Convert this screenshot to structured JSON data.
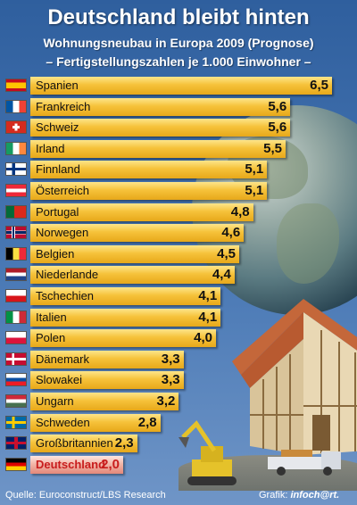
{
  "title": "Deutschland bleibt hinten",
  "subtitle_line1": "Wohnungsneubau in Europa 2009 (Prognose)",
  "subtitle_line2": "– Fertigstellungszahlen je 1.000 Einwohner –",
  "source": "Quelle: Euroconstruct/LBS Research",
  "credit_label": "Grafik:",
  "credit_brand": "infoch@rt.",
  "colors": {
    "bar": "#f6c23a",
    "bar_highlight": "#f2b6a8",
    "highlight_text": "#c81d1d",
    "background": "#3a67a8"
  },
  "chart_data": {
    "type": "bar",
    "orientation": "horizontal",
    "categories": [
      "Spanien",
      "Frankreich",
      "Schweiz",
      "Irland",
      "Finnland",
      "Österreich",
      "Portugal",
      "Norwegen",
      "Belgien",
      "Niederlande",
      "Tschechien",
      "Italien",
      "Polen",
      "Dänemark",
      "Slowakei",
      "Ungarn",
      "Schweden",
      "Großbritannien",
      "Deutschland"
    ],
    "values": [
      6.5,
      5.6,
      5.6,
      5.5,
      5.1,
      5.1,
      4.8,
      4.6,
      4.5,
      4.4,
      4.1,
      4.1,
      4.0,
      3.3,
      3.3,
      3.2,
      2.8,
      2.3,
      2.0
    ],
    "value_labels": [
      "6,5",
      "5,6",
      "5,6",
      "5,5",
      "5,1",
      "5,1",
      "4,8",
      "4,6",
      "4,5",
      "4,4",
      "4,1",
      "4,1",
      "4,0",
      "3,3",
      "3,3",
      "3,2",
      "2,8",
      "2,3",
      "2,0"
    ],
    "flags": [
      "flag-spain-icon",
      "flag-france-icon",
      "flag-switzerland-icon",
      "flag-ireland-icon",
      "flag-finland-icon",
      "flag-austria-icon",
      "flag-portugal-icon",
      "flag-norway-icon",
      "flag-belgium-icon",
      "flag-netherlands-icon",
      "flag-czech-icon",
      "flag-italy-icon",
      "flag-poland-icon",
      "flag-denmark-icon",
      "flag-slovakia-icon",
      "flag-hungary-icon",
      "flag-sweden-icon",
      "flag-uk-icon",
      "flag-germany-icon"
    ],
    "highlight": "Deutschland",
    "xlim": [
      0,
      6.5
    ]
  }
}
